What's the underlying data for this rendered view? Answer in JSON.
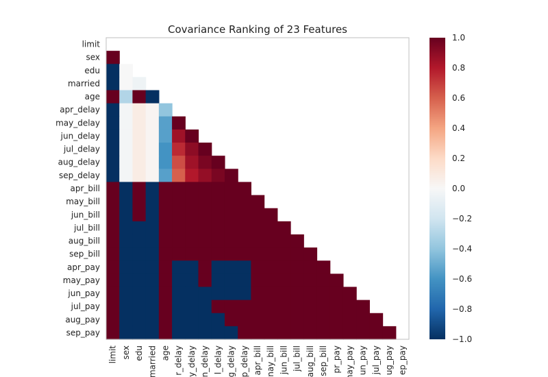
{
  "chart_data": {
    "type": "heatmap",
    "title": "Covariance Ranking of 23 Features",
    "xlabel": "",
    "ylabel": "",
    "features": [
      "limit",
      "sex",
      "edu",
      "married",
      "age",
      "apr_delay",
      "may_delay",
      "jun_delay",
      "jul_delay",
      "aug_delay",
      "sep_delay",
      "apr_bill",
      "may_bill",
      "jun_bill",
      "jul_bill",
      "aug_bill",
      "sep_bill",
      "apr_pay",
      "may_pay",
      "jun_pay",
      "jul_pay",
      "aug_pay",
      "sep_pay"
    ],
    "x_tick_labels_visible": [
      "limit",
      "sex",
      "edu",
      "married",
      "age",
      "r_delay",
      "y_delay",
      "n_delay",
      "l_delay",
      "g_delay",
      "p_delay",
      "apr_bill",
      "nay_bill",
      "jun_bill",
      "jul_bill",
      "aug_bill",
      "sep_bill",
      "pr_pay",
      "nay_pay",
      "un_pay",
      "jul_pay",
      "ug_pay",
      "ep_pay"
    ],
    "matrix_lower_triangle": [
      [],
      [
        1.0
      ],
      [
        -1.0,
        0.0
      ],
      [
        -1.0,
        0.0,
        -0.05
      ],
      [
        1.0,
        -0.3,
        1.0,
        -1.0
      ],
      [
        -1.0,
        -0.02,
        0.08,
        0.02,
        -0.4
      ],
      [
        -1.0,
        -0.02,
        0.08,
        0.02,
        -0.55,
        1.0
      ],
      [
        -1.0,
        -0.02,
        0.08,
        0.02,
        -0.55,
        0.85,
        1.0
      ],
      [
        -1.0,
        -0.02,
        0.08,
        0.02,
        -0.6,
        0.75,
        0.9,
        1.0
      ],
      [
        -1.0,
        -0.02,
        0.08,
        0.02,
        -0.6,
        0.65,
        0.85,
        0.95,
        1.0
      ],
      [
        -1.0,
        -0.02,
        0.08,
        0.02,
        -0.55,
        0.6,
        0.8,
        0.88,
        0.95,
        1.0
      ],
      [
        1.0,
        -1.0,
        1.0,
        -1.0,
        1.0,
        1.0,
        1.0,
        1.0,
        1.0,
        1.0,
        1.0
      ],
      [
        1.0,
        -1.0,
        1.0,
        -1.0,
        1.0,
        1.0,
        1.0,
        1.0,
        1.0,
        1.0,
        1.0,
        1.0
      ],
      [
        1.0,
        -1.0,
        1.0,
        -1.0,
        1.0,
        1.0,
        1.0,
        1.0,
        1.0,
        1.0,
        1.0,
        1.0,
        1.0
      ],
      [
        1.0,
        -1.0,
        -1.0,
        -1.0,
        1.0,
        1.0,
        1.0,
        1.0,
        1.0,
        1.0,
        1.0,
        1.0,
        1.0,
        1.0
      ],
      [
        1.0,
        -1.0,
        -1.0,
        -1.0,
        1.0,
        1.0,
        1.0,
        1.0,
        1.0,
        1.0,
        1.0,
        1.0,
        1.0,
        1.0,
        1.0
      ],
      [
        1.0,
        -1.0,
        -1.0,
        -1.0,
        1.0,
        1.0,
        1.0,
        1.0,
        1.0,
        1.0,
        1.0,
        1.0,
        1.0,
        1.0,
        1.0,
        1.0
      ],
      [
        1.0,
        -1.0,
        -1.0,
        -1.0,
        1.0,
        -1.0,
        -1.0,
        1.0,
        -1.0,
        -1.0,
        -1.0,
        1.0,
        1.0,
        1.0,
        1.0,
        1.0,
        1.0
      ],
      [
        1.0,
        -1.0,
        -1.0,
        -1.0,
        1.0,
        -1.0,
        -1.0,
        1.0,
        -1.0,
        -1.0,
        -1.0,
        1.0,
        1.0,
        1.0,
        1.0,
        1.0,
        1.0,
        1.0
      ],
      [
        1.0,
        -1.0,
        -1.0,
        -1.0,
        1.0,
        -1.0,
        -1.0,
        -1.0,
        -1.0,
        -1.0,
        -1.0,
        1.0,
        1.0,
        1.0,
        1.0,
        1.0,
        1.0,
        1.0,
        1.0
      ],
      [
        1.0,
        -1.0,
        -1.0,
        -1.0,
        1.0,
        -1.0,
        -1.0,
        -1.0,
        1.0,
        1.0,
        1.0,
        1.0,
        1.0,
        1.0,
        1.0,
        1.0,
        1.0,
        1.0,
        1.0,
        1.0
      ],
      [
        1.0,
        -1.0,
        -1.0,
        -1.0,
        1.0,
        -1.0,
        -1.0,
        -1.0,
        -1.0,
        1.0,
        1.0,
        1.0,
        1.0,
        1.0,
        1.0,
        1.0,
        1.0,
        1.0,
        1.0,
        1.0,
        1.0
      ],
      [
        1.0,
        -1.0,
        -1.0,
        -1.0,
        1.0,
        -1.0,
        -1.0,
        -1.0,
        -1.0,
        -1.0,
        1.0,
        1.0,
        1.0,
        1.0,
        1.0,
        1.0,
        1.0,
        1.0,
        1.0,
        1.0,
        1.0,
        1.0
      ]
    ],
    "colorbar": {
      "min": -1.0,
      "max": 1.0,
      "ticks": [
        1.0,
        0.8,
        0.6,
        0.4,
        0.2,
        0.0,
        -0.2,
        -0.4,
        -0.6,
        -0.8,
        -1.0
      ],
      "tick_labels": [
        "1.0",
        "0.8",
        "0.6",
        "0.4",
        "0.2",
        "0.0",
        "−0.2",
        "−0.4",
        "−0.6",
        "−0.8",
        "−1.0"
      ],
      "colormap": "RdBu_r",
      "colormap_stops": [
        "#053061",
        "#2166ac",
        "#4393c3",
        "#92c5de",
        "#d1e5f0",
        "#f7f7f7",
        "#fddbc7",
        "#f4a582",
        "#d6604d",
        "#b2182b",
        "#67001f"
      ]
    }
  }
}
